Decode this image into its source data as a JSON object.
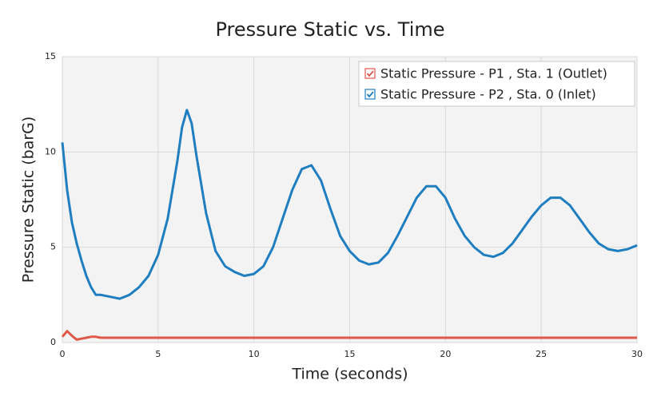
{
  "chart_data": {
    "type": "line",
    "title": "Pressure Static vs. Time",
    "xlabel": "Time (seconds)",
    "ylabel": "Pressure Static (barG)",
    "x": [
      0,
      0.25,
      0.5,
      0.75,
      1,
      1.25,
      1.5,
      1.75,
      2,
      2.5,
      3,
      3.5,
      4,
      4.5,
      5,
      5.5,
      6,
      6.25,
      6.5,
      6.75,
      7,
      7.5,
      8,
      8.5,
      9,
      9.5,
      10,
      10.5,
      11,
      11.5,
      12,
      12.5,
      13,
      13.5,
      14,
      14.5,
      15,
      15.5,
      16,
      16.5,
      17,
      17.5,
      18,
      18.5,
      19,
      19.5,
      20,
      20.5,
      21,
      21.5,
      22,
      22.5,
      23,
      23.5,
      24,
      24.5,
      25,
      25.5,
      26,
      26.5,
      27,
      27.5,
      28,
      28.5,
      29,
      29.5,
      30
    ],
    "series": [
      {
        "name": "Static Pressure - P1 , Sta. 1 (Outlet)",
        "color": "#e0584a",
        "values": [
          0.3,
          0.6,
          0.35,
          0.15,
          0.2,
          0.25,
          0.3,
          0.3,
          0.25,
          0.25,
          0.25,
          0.25,
          0.25,
          0.25,
          0.25,
          0.25,
          0.25,
          0.25,
          0.25,
          0.25,
          0.25,
          0.25,
          0.25,
          0.25,
          0.25,
          0.25,
          0.25,
          0.25,
          0.25,
          0.25,
          0.25,
          0.25,
          0.25,
          0.25,
          0.25,
          0.25,
          0.25,
          0.25,
          0.25,
          0.25,
          0.25,
          0.25,
          0.25,
          0.25,
          0.25,
          0.25,
          0.25,
          0.25,
          0.25,
          0.25,
          0.25,
          0.25,
          0.25,
          0.25,
          0.25,
          0.25,
          0.25,
          0.25,
          0.25,
          0.25,
          0.25,
          0.25,
          0.25,
          0.25,
          0.25,
          0.25,
          0.25
        ]
      },
      {
        "name": "Static Pressure - P2 , Sta. 0 (Inlet)",
        "color": "#1f7ec0",
        "values": [
          10.5,
          8,
          6.3,
          5.2,
          4.3,
          3.5,
          2.9,
          2.5,
          2.5,
          2.4,
          2.3,
          2.5,
          2.9,
          3.5,
          4.6,
          6.5,
          9.5,
          11.3,
          12.2,
          11.5,
          9.8,
          6.8,
          4.8,
          4,
          3.7,
          3.5,
          3.6,
          4,
          5,
          6.5,
          8,
          9.1,
          9.3,
          8.5,
          7,
          5.6,
          4.8,
          4.3,
          4.1,
          4.2,
          4.7,
          5.6,
          6.6,
          7.6,
          8.2,
          8.2,
          7.6,
          6.5,
          5.6,
          5,
          4.6,
          4.5,
          4.7,
          5.2,
          5.9,
          6.6,
          7.2,
          7.6,
          7.6,
          7.2,
          6.5,
          5.8,
          5.2,
          4.9,
          4.8,
          4.9,
          5.1
        ]
      }
    ],
    "xlim": [
      0,
      30
    ],
    "xticks": [
      0,
      5,
      10,
      15,
      20,
      25,
      30
    ],
    "ylim": [
      0,
      15
    ],
    "yticks": [
      0,
      5,
      10,
      15
    ],
    "grid": true,
    "legend": "upper right"
  }
}
